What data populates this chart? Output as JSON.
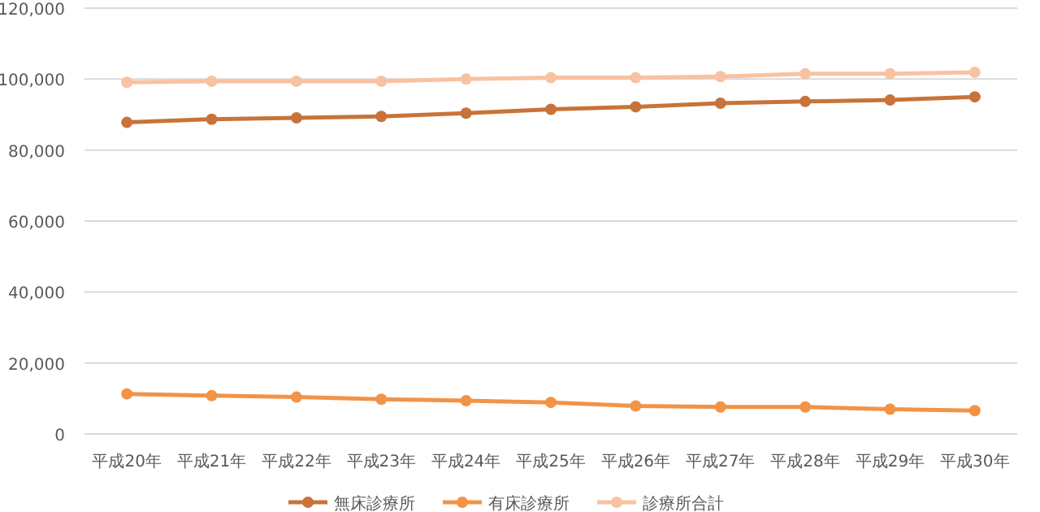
{
  "chart_data": {
    "type": "line",
    "categories": [
      "平成20年",
      "平成21年",
      "平成22年",
      "平成23年",
      "平成24年",
      "平成25年",
      "平成26年",
      "平成27年",
      "平成28年",
      "平成29年",
      "平成30年"
    ],
    "series": [
      {
        "name": "無床診療所",
        "color": "#c8733a",
        "values": [
          87800,
          88700,
          89100,
          89500,
          90400,
          91500,
          92200,
          93200,
          93700,
          94100,
          95000
        ]
      },
      {
        "name": "有床診療所",
        "color": "#f29346",
        "values": [
          11300,
          10800,
          10400,
          9800,
          9400,
          8900,
          7900,
          7600,
          7600,
          7000,
          6600
        ]
      },
      {
        "name": "診療所合計",
        "color": "#f8c2a2",
        "values": [
          99100,
          99400,
          99400,
          99400,
          100000,
          100400,
          100400,
          100700,
          101500,
          101500,
          101900
        ]
      }
    ],
    "ylim": [
      0,
      120000
    ],
    "yticks": [
      {
        "value": 0,
        "label": "0"
      },
      {
        "value": 20000,
        "label": "20,000"
      },
      {
        "value": 40000,
        "label": "40,000"
      },
      {
        "value": 60000,
        "label": "60,000"
      },
      {
        "value": 80000,
        "label": "80,000"
      },
      {
        "value": 100000,
        "label": "100,000"
      },
      {
        "value": 120000,
        "label": "120,000"
      }
    ],
    "grid": "y",
    "legend": "bottom",
    "marker": "circle",
    "line_style": "solid"
  }
}
